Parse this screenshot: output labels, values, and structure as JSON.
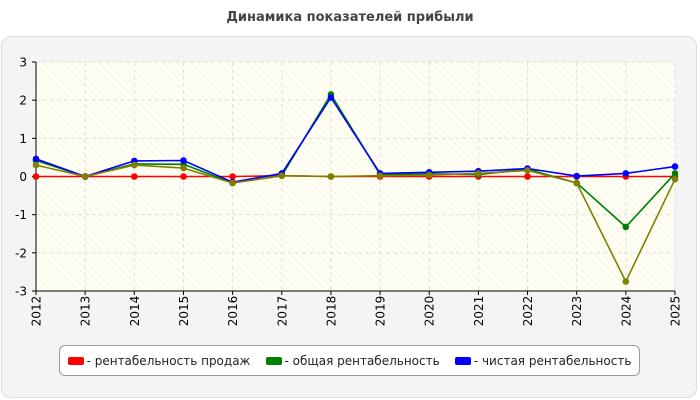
{
  "chart_data": {
    "type": "line",
    "title": "Динамика показателей прибыли",
    "xlabel": "",
    "ylabel": "",
    "categories": [
      "2012",
      "2013",
      "2014",
      "2015",
      "2016",
      "2017",
      "2018",
      "2019",
      "2020",
      "2021",
      "2022",
      "2023",
      "2024",
      "2025"
    ],
    "ylim": [
      -3,
      3
    ],
    "yticks": [
      "3",
      "2",
      "1",
      "0",
      "-1",
      "-2",
      "-3"
    ],
    "grid": true,
    "legend_position": "bottom",
    "series": [
      {
        "name": "рентабельность продаж",
        "color": "#ff0000",
        "values": [
          0.0,
          0.0,
          0.0,
          0.0,
          0.0,
          0.02,
          0.0,
          0.0,
          0.0,
          0.0,
          0.0,
          0.0,
          0.0,
          0.0
        ]
      },
      {
        "name": "общая рентабельность",
        "color": "#008000",
        "values": [
          0.42,
          0.0,
          0.33,
          0.32,
          -0.17,
          0.02,
          2.15,
          0.05,
          0.07,
          0.05,
          0.19,
          -0.17,
          -1.32,
          0.08
        ]
      },
      {
        "name": "чистая рентабельность",
        "color": "#0000ff",
        "values": [
          0.46,
          0.0,
          0.41,
          0.42,
          -0.15,
          0.08,
          2.07,
          0.08,
          0.11,
          0.14,
          0.21,
          0.01,
          0.08,
          0.26
        ]
      },
      {
        "color": "#808000",
        "values": [
          0.3,
          0.0,
          0.3,
          0.22,
          -0.17,
          0.02,
          0.0,
          0.02,
          0.04,
          0.08,
          0.16,
          -0.17,
          -2.75,
          -0.07
        ]
      }
    ]
  }
}
